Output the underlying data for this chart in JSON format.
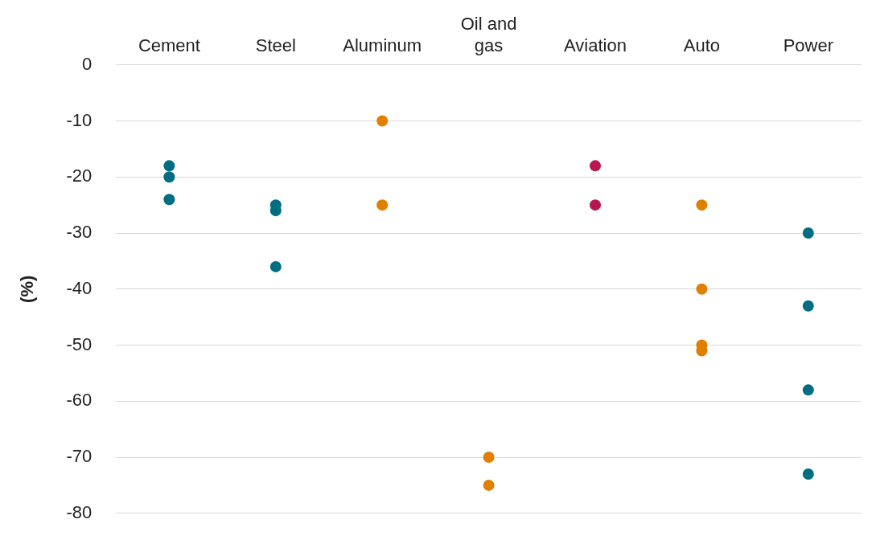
{
  "chart_data": {
    "type": "scatter",
    "ylabel": "(%)",
    "categories": [
      "Cement",
      "Steel",
      "Aluminum",
      "Oil and gas",
      "Aviation",
      "Auto",
      "Power"
    ],
    "series": [
      {
        "color": "#006e82",
        "x": [
          "Cement",
          "Cement",
          "Cement",
          "Steel",
          "Steel",
          "Steel",
          "Power",
          "Power",
          "Power",
          "Power"
        ],
        "values": [
          -18,
          -20,
          -24,
          -25,
          -26,
          -36,
          -30,
          -43,
          -58,
          -73
        ]
      },
      {
        "color": "#e07f00",
        "x": [
          "Aluminum",
          "Aluminum",
          "Oil and gas",
          "Oil and gas",
          "Auto",
          "Auto",
          "Auto",
          "Auto"
        ],
        "values": [
          -10,
          -25,
          -70,
          -75,
          -25,
          -40,
          -50,
          -51
        ]
      },
      {
        "color": "#b8164f",
        "x": [
          "Aviation",
          "Aviation"
        ],
        "values": [
          -18,
          -25
        ]
      }
    ],
    "ylim": [
      -80,
      0
    ],
    "yticks": [
      -80,
      -70,
      -60,
      -50,
      -40,
      -30,
      -20,
      -10,
      0
    ],
    "grid": "y",
    "marker": "circle",
    "legend": false
  }
}
